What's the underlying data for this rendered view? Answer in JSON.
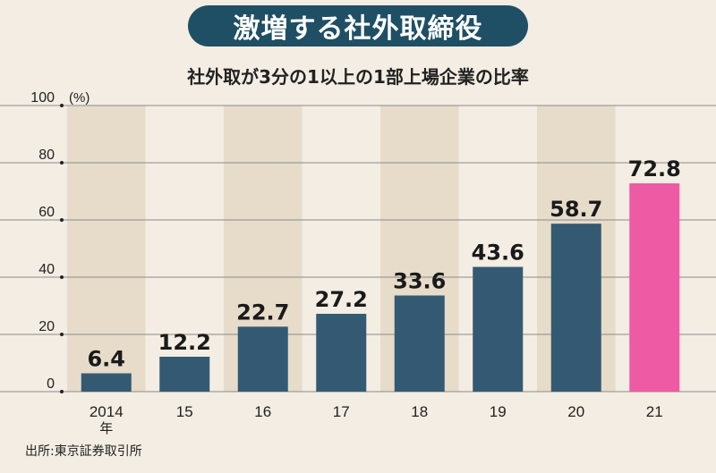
{
  "header": {
    "title": "激増する社外取締役",
    "subtitle": "社外取が3分の1以上の1部上場企業の比率"
  },
  "footer": {
    "source": "出所:東京証券取引所"
  },
  "colors": {
    "bar": "#345a73",
    "highlight": "#ee5aa3",
    "band": "#e6dcc9",
    "background": "#f3ede3",
    "title_bg": "#1f4f64"
  },
  "chart_data": {
    "type": "bar",
    "title": "社外取が3分の1以上の1部上場企業の比率",
    "unit_label": "(%)",
    "categories": [
      "2014",
      "15",
      "16",
      "17",
      "18",
      "19",
      "20",
      "21"
    ],
    "first_category_suffix": "年",
    "values": [
      6.4,
      12.2,
      22.7,
      27.2,
      33.6,
      43.6,
      58.7,
      72.8
    ],
    "value_labels": [
      "6.4",
      "12.2",
      "22.7",
      "27.2",
      "33.6",
      "43.6",
      "58.7",
      "72.8"
    ],
    "highlight_index": 7,
    "ylim": [
      0,
      100
    ],
    "yticks": [
      0,
      20,
      40,
      60,
      80,
      100
    ],
    "grid": true
  }
}
